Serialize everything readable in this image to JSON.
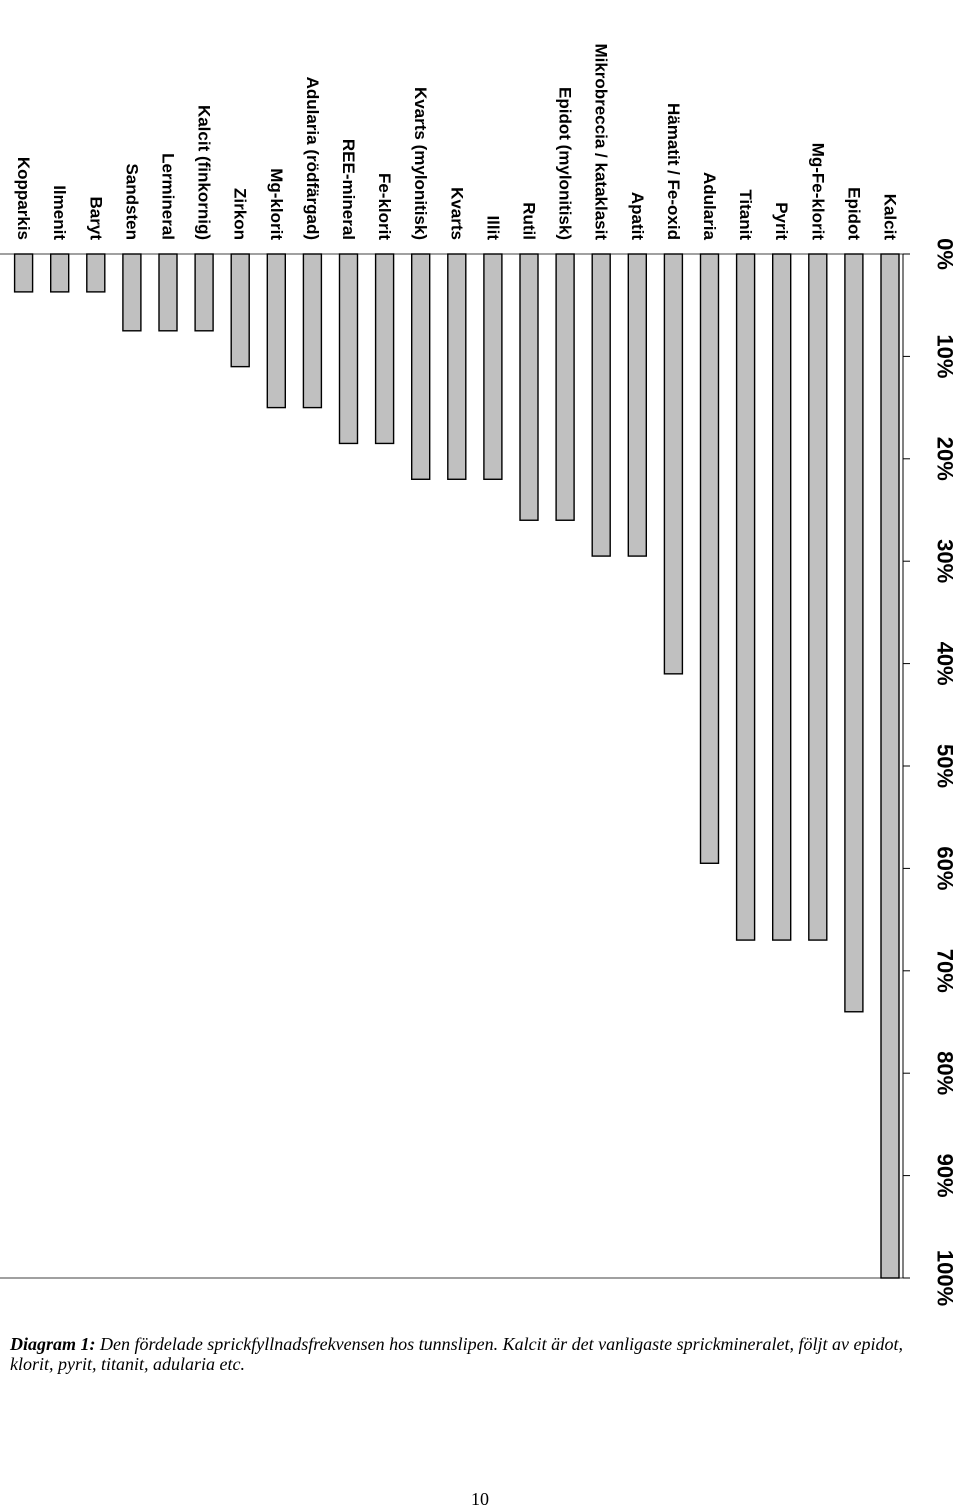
{
  "chart_data": {
    "type": "bar",
    "orientation": "horizontal",
    "categories": [
      "Kalcit",
      "Epidot",
      "Mg-Fe-klorit",
      "Pyrit",
      "Titanit",
      "Adularia",
      "Hämatit / Fe-oxid",
      "Apatit",
      "Mikrobreccia / kataklasit",
      "Epidot (mylonitisk)",
      "Rutil",
      "Illit",
      "Kvarts",
      "Kvarts (mylonitisk)",
      "Fe-klorit",
      "REE-mineral",
      "Adularia (rödfärgad)",
      "Mg-klorit",
      "Zirkon",
      "Kalcit (finkornig)",
      "Lermineral",
      "Sandsten",
      "Baryt",
      "Ilmenit",
      "Kopparkis"
    ],
    "values": [
      100,
      74,
      67,
      67,
      67,
      59.5,
      41,
      29.5,
      29.5,
      26,
      26,
      22,
      22,
      22,
      18.5,
      18.5,
      15,
      15,
      11,
      7.5,
      7.5,
      7.5,
      3.7,
      3.7,
      3.7
    ],
    "xlim": [
      0,
      100
    ],
    "tick_values": [
      0,
      10,
      20,
      30,
      40,
      50,
      60,
      70,
      80,
      90,
      100
    ],
    "tick_labels": [
      "0%",
      "10%",
      "20%",
      "30%",
      "40%",
      "50%",
      "60%",
      "70%",
      "80%",
      "90%",
      "100%"
    ],
    "grid": false,
    "colors": {
      "bar_fill": "#c0c0c0",
      "bar_stroke": "#000000"
    }
  },
  "caption": {
    "label": "Diagram 1:",
    "text": " Den fördelade sprickfyllnadsfrekvensen hos tunnslipen. Kalcit är det vanligaste sprickmineralet, följt av epidot, klorit, pyrit, titanit, adularia etc."
  },
  "page_number": "10"
}
